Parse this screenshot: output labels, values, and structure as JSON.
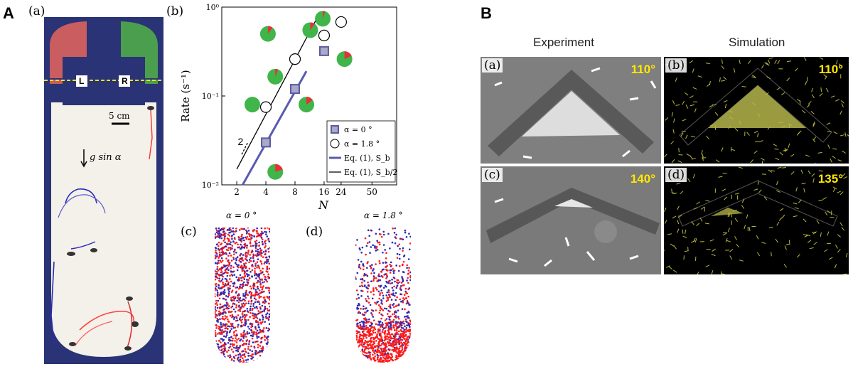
{
  "panelA": {
    "letter": "A",
    "sub_a": "(a)",
    "box_left": "L",
    "box_right": "R",
    "scale": "5 cm",
    "gravity": "g sin α",
    "sub_b": "(b)",
    "sub_c": "(c)",
    "sub_d": "(d)",
    "title_c": "α = 0 °",
    "title_d": "α = 1.8 °",
    "slope_label": "2",
    "legend": [
      "α = 0 °",
      "α = 1.8 °",
      "Eq. (1), S_b",
      "Eq. (1), S_b/2"
    ],
    "colors": {
      "series_square": "#a9a9c9",
      "square_edge": "#5a5aa0",
      "eq_sb": "#5a5ab0",
      "eq_sb2": "#000000",
      "pie_green": "#3fb54a",
      "pie_red": "#e8303a",
      "red": "#ff1a1a",
      "blue": "#2a2ab8"
    }
  },
  "chart_data": {
    "type": "scatter",
    "xlabel": "N",
    "ylabel": "Rate (s⁻¹)",
    "xscale": "log",
    "yscale": "log",
    "xlim": [
      1.4,
      90
    ],
    "ylim": [
      0.01,
      1.0
    ],
    "xticks": [
      2,
      4,
      8,
      16,
      24,
      50
    ],
    "yticks": [
      {
        "value": 0.01,
        "label": "10⁻²"
      },
      {
        "value": 0.1,
        "label": "10⁻¹"
      },
      {
        "value": 1.0,
        "label": "10⁰"
      }
    ],
    "series": [
      {
        "name": "α = 0 °",
        "marker": "square",
        "x": [
          4,
          8,
          16
        ],
        "y": [
          0.03,
          0.12,
          0.32
        ]
      },
      {
        "name": "α = 1.8 °",
        "marker": "circle",
        "x": [
          4,
          8,
          16,
          24
        ],
        "y": [
          0.075,
          0.26,
          0.48,
          0.68
        ]
      },
      {
        "name": "Eq. (1), S_b",
        "marker": "line",
        "x": [
          2.3,
          10.5
        ],
        "y": [
          0.01,
          0.19
        ]
      },
      {
        "name": "Eq. (1), S_b/2",
        "marker": "line",
        "x": [
          2,
          13.5
        ],
        "y": [
          0.015,
          0.75
        ]
      }
    ],
    "pies": [
      {
        "x": 2.9,
        "y": 0.08,
        "red": 0.0
      },
      {
        "x": 5.0,
        "y": 0.165,
        "red": 0.06
      },
      {
        "x": 4.2,
        "y": 0.5,
        "red": 0.1
      },
      {
        "x": 5.0,
        "y": 0.014,
        "red": 0.2
      },
      {
        "x": 10.5,
        "y": 0.08,
        "red": 0.15
      },
      {
        "x": 11.5,
        "y": 0.55,
        "red": 0.1
      },
      {
        "x": 15.5,
        "y": 0.74,
        "red": 0.05
      },
      {
        "x": 26,
        "y": 0.26,
        "red": 0.18
      }
    ]
  },
  "panelB": {
    "letter": "B",
    "header_exp": "Experiment",
    "header_sim": "Simulation",
    "tiles": [
      {
        "label": "(a)",
        "angle": "110°"
      },
      {
        "label": "(b)",
        "angle": "110°"
      },
      {
        "label": "(c)",
        "angle": "140°"
      },
      {
        "label": "(d)",
        "angle": "135°"
      }
    ]
  }
}
